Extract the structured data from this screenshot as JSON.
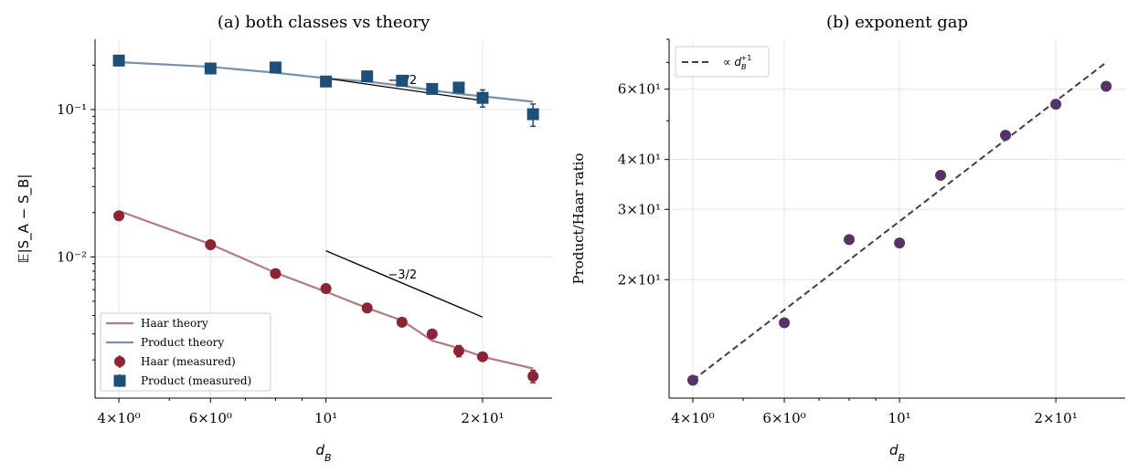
{
  "chart_data": [
    {
      "type": "line",
      "title": "(a) both classes vs theory",
      "xlabel": "d_B",
      "ylabel": "𝔼|S_A − S_B|",
      "xscale": "log",
      "yscale": "log",
      "xlim": [
        3.6,
        27.2
      ],
      "ylim": [
        0.0011,
        0.3
      ],
      "x_ticks": [
        {
          "value": 4,
          "label": "4×10⁰"
        },
        {
          "value": 6,
          "label": "6×10⁰"
        },
        {
          "value": 10,
          "label": "10¹"
        },
        {
          "value": 20,
          "label": "2×10¹"
        }
      ],
      "y_ticks": [
        {
          "value": 0.01,
          "label": "10⁻²"
        },
        {
          "value": 0.1,
          "label": "10⁻¹"
        }
      ],
      "grid": true,
      "legend_position": "lower-left",
      "series": [
        {
          "name": "Haar theory",
          "kind": "line",
          "color": "#b47a82",
          "x": [
            4,
            6,
            8,
            10,
            12,
            14,
            16,
            18,
            20,
            25
          ],
          "y": [
            0.0205,
            0.0122,
            0.0078,
            0.0058,
            0.0045,
            0.0037,
            0.0027,
            0.0024,
            0.0021,
            0.00175
          ]
        },
        {
          "name": "Product theory",
          "kind": "line",
          "color": "#7891ab",
          "x": [
            4,
            6,
            8,
            10,
            12,
            14,
            16,
            18,
            20,
            25
          ],
          "y": [
            0.21,
            0.195,
            0.178,
            0.163,
            0.155,
            0.145,
            0.135,
            0.128,
            0.123,
            0.113
          ]
        },
        {
          "name": "Haar (measured)",
          "kind": "points",
          "marker": "circle",
          "color": "#8b2434",
          "x": [
            4,
            6,
            8,
            10,
            12,
            14,
            16,
            18,
            20,
            25
          ],
          "y": [
            0.019,
            0.0121,
            0.0077,
            0.0061,
            0.0045,
            0.0036,
            0.003,
            0.0023,
            0.0021,
            0.00155
          ],
          "err": [
            0,
            0,
            0,
            0,
            0,
            0,
            0,
            0.0002,
            0,
            0.00015
          ]
        },
        {
          "name": "Product (measured)",
          "kind": "points",
          "marker": "square",
          "color": "#1f4e79",
          "x": [
            4,
            6,
            8,
            10,
            12,
            14,
            16,
            18,
            20,
            25
          ],
          "y": [
            0.215,
            0.19,
            0.193,
            0.155,
            0.168,
            0.157,
            0.138,
            0.141,
            0.12,
            0.093
          ],
          "err": [
            0,
            0,
            0,
            0,
            0,
            0,
            0,
            0,
            0.016,
            0.016
          ]
        }
      ],
      "reference_lines": [
        {
          "label": "−1/2",
          "x": [
            10,
            20
          ],
          "y": [
            0.163,
            0.115
          ]
        },
        {
          "label": "−3/2",
          "x": [
            10,
            20
          ],
          "y": [
            0.011,
            0.0039
          ]
        }
      ]
    },
    {
      "type": "scatter",
      "title": "(b) exponent gap",
      "xlabel": "d_B",
      "ylabel": "Product/Haar ratio",
      "xscale": "log",
      "yscale": "log",
      "xlim": [
        3.6,
        27.2
      ],
      "ylim": [
        10.1,
        80
      ],
      "x_ticks": [
        {
          "value": 4,
          "label": "4×10⁰"
        },
        {
          "value": 6,
          "label": "6×10⁰"
        },
        {
          "value": 10,
          "label": "10¹"
        },
        {
          "value": 20,
          "label": "2×10¹"
        }
      ],
      "y_ticks": [
        {
          "value": 20,
          "label": "2×10¹"
        },
        {
          "value": 30,
          "label": "3×10¹"
        },
        {
          "value": 40,
          "label": "4×10¹"
        },
        {
          "value": 60,
          "label": "6×10¹"
        }
      ],
      "grid": true,
      "legend_position": "top-left",
      "series": [
        {
          "name": "∝ d_B^{+1}",
          "kind": "dashed-line",
          "color": "#404040",
          "x": [
            4,
            25
          ],
          "y": [
            11.2,
            70
          ]
        },
        {
          "name": "",
          "kind": "points",
          "marker": "circle",
          "color": "#553366",
          "x": [
            4,
            6,
            8,
            10,
            12,
            16,
            20,
            25
          ],
          "y": [
            11.2,
            15.6,
            25.2,
            24.7,
            36.5,
            46,
            55,
            61
          ]
        }
      ]
    }
  ]
}
